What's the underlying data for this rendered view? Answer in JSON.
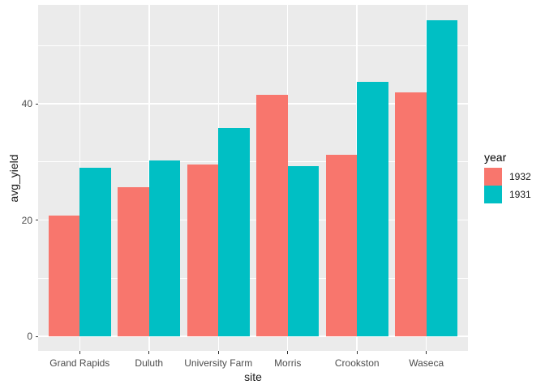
{
  "chart_data": {
    "type": "bar",
    "grouping": "dodge",
    "title": "",
    "xlabel": "site",
    "ylabel": "avg_yield",
    "categories": [
      "Grand Rapids",
      "Duluth",
      "University Farm",
      "Morris",
      "Crookston",
      "Waseca"
    ],
    "series": [
      {
        "name": "1932",
        "color": "#F8766D",
        "values": [
          20.8,
          25.7,
          29.5,
          41.5,
          31.2,
          41.9
        ]
      },
      {
        "name": "1931",
        "color": "#00BFC4",
        "values": [
          29.0,
          30.3,
          35.8,
          29.3,
          43.7,
          54.3
        ]
      }
    ],
    "legend": {
      "title": "year",
      "position": "right",
      "entries": [
        "1932",
        "1931"
      ]
    },
    "axes": {
      "y_ticks": [
        0,
        20,
        40
      ],
      "y_minor": [
        10,
        30,
        50
      ],
      "ylim": [
        -2.5,
        57.0
      ],
      "grid": true
    },
    "colors": {
      "panel_bg": "#EBEBEB",
      "grid": "#FFFFFF",
      "tick_mark": "#333333",
      "axis_text": "#4D4D4D",
      "axis_title": "#1A1A1A"
    }
  }
}
